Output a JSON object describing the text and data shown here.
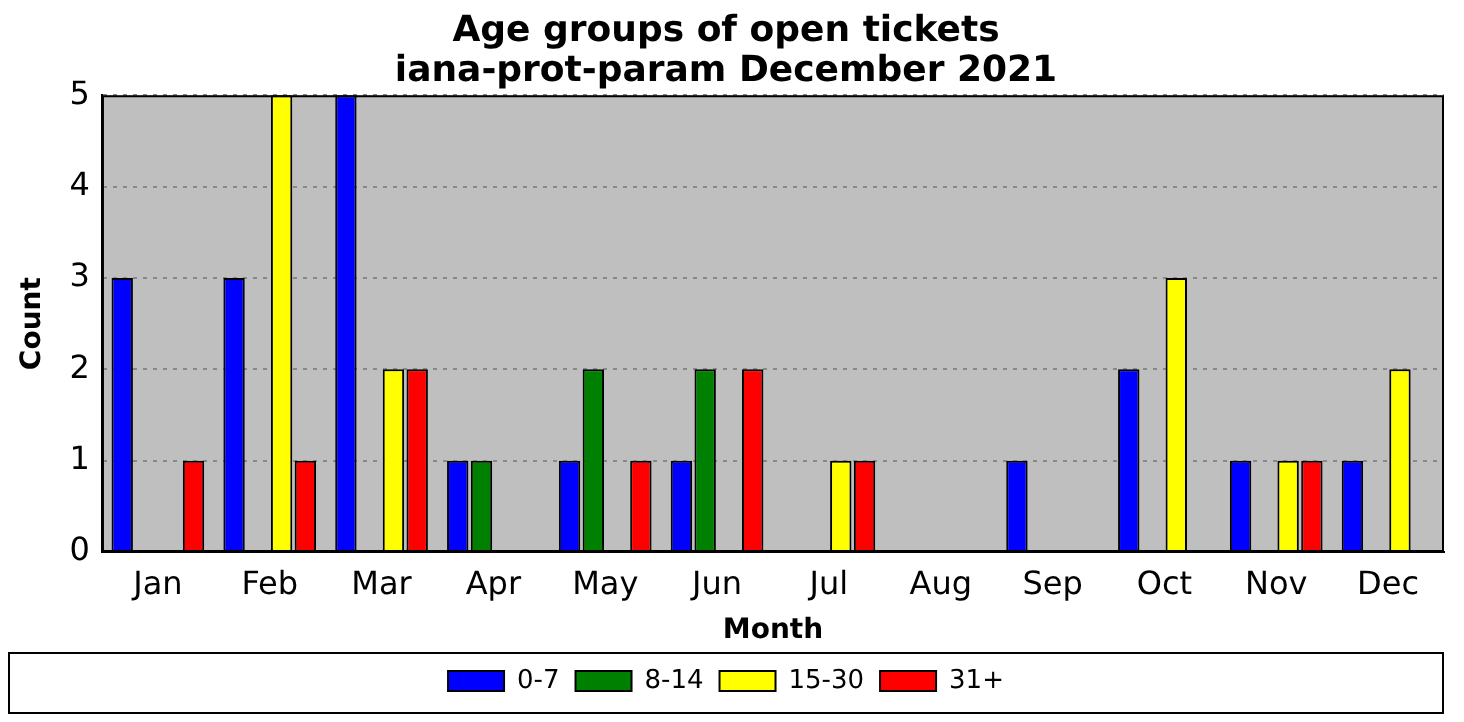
{
  "chart_data": {
    "type": "bar",
    "title": "Age groups of open tickets\niana-prot-param December 2021",
    "xlabel": "Month",
    "ylabel": "Count",
    "categories": [
      "Jan",
      "Feb",
      "Mar",
      "Apr",
      "May",
      "Jun",
      "Jul",
      "Aug",
      "Sep",
      "Oct",
      "Nov",
      "Dec"
    ],
    "series": [
      {
        "name": "0-7",
        "color": "#0000ff",
        "values": [
          3,
          3,
          5,
          1,
          1,
          1,
          0,
          0,
          1,
          2,
          1,
          1
        ]
      },
      {
        "name": "8-14",
        "color": "#008000",
        "values": [
          0,
          0,
          0,
          1,
          2,
          2,
          0,
          0,
          0,
          0,
          0,
          0
        ]
      },
      {
        "name": "15-30",
        "color": "#ffff00",
        "values": [
          0,
          5,
          2,
          0,
          0,
          0,
          1,
          0,
          0,
          3,
          1,
          2
        ]
      },
      {
        "name": "31+",
        "color": "#ff0000",
        "values": [
          1,
          1,
          2,
          0,
          1,
          2,
          1,
          0,
          0,
          0,
          1,
          0
        ]
      }
    ],
    "ylim": [
      0,
      5
    ],
    "yticks": [
      0,
      1,
      2,
      3,
      4,
      5
    ],
    "grid": "y",
    "legend": "bottom"
  }
}
